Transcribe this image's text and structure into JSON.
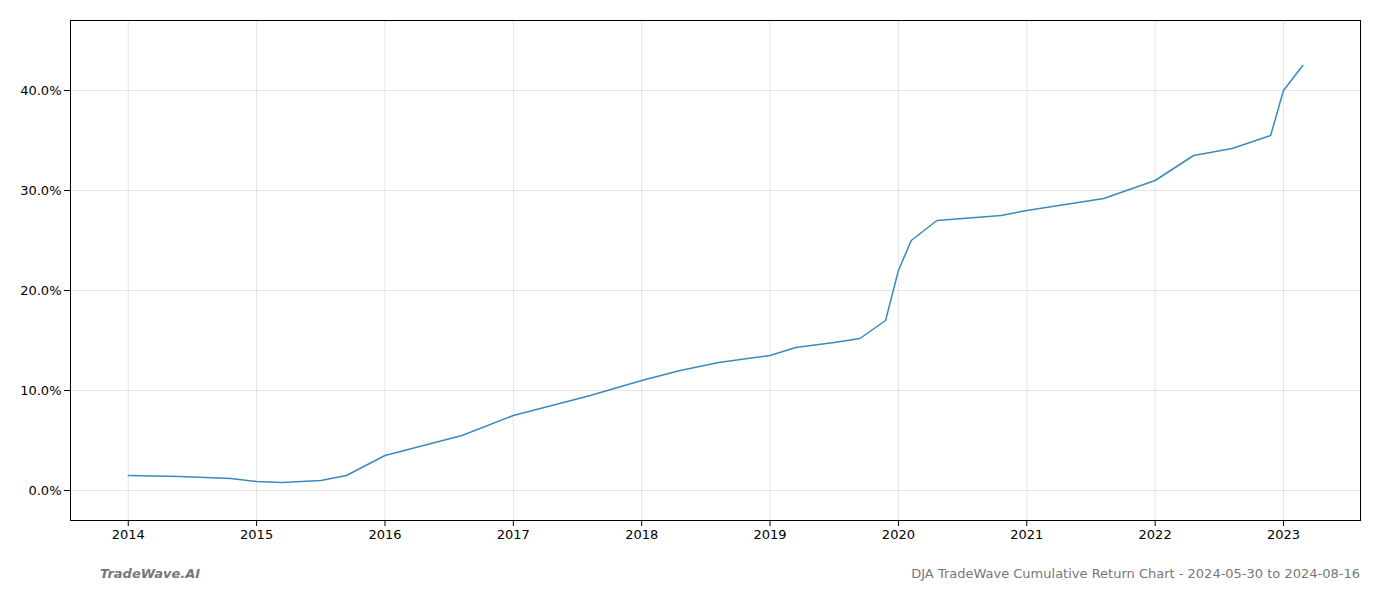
{
  "chart_data": {
    "type": "line",
    "annotations": [
      "TradeWave.AI",
      "DJA TradeWave Cumulative Return Chart - 2024-05-30 to 2024-08-16"
    ],
    "x": [
      2014.0,
      2014.4,
      2014.8,
      2015.0,
      2015.2,
      2015.5,
      2015.7,
      2016.0,
      2016.3,
      2016.6,
      2017.0,
      2017.3,
      2017.6,
      2018.0,
      2018.3,
      2018.6,
      2019.0,
      2019.2,
      2019.5,
      2019.7,
      2019.9,
      2020.0,
      2020.1,
      2020.3,
      2020.5,
      2020.8,
      2021.0,
      2021.3,
      2021.6,
      2022.0,
      2022.3,
      2022.6,
      2022.9,
      2023.0,
      2023.15
    ],
    "values": [
      1.5,
      1.4,
      1.2,
      0.9,
      0.8,
      1.0,
      1.5,
      3.5,
      4.5,
      5.5,
      7.5,
      8.5,
      9.5,
      11.0,
      12.0,
      12.8,
      13.5,
      14.3,
      14.8,
      15.2,
      17.0,
      22.0,
      25.0,
      27.0,
      27.2,
      27.5,
      28.0,
      28.6,
      29.2,
      31.0,
      33.5,
      34.2,
      35.5,
      40.0,
      42.5
    ],
    "color": "#3a8abf",
    "xlim": [
      2013.55,
      2023.6
    ],
    "xticks": [
      2014,
      2015,
      2016,
      2017,
      2018,
      2019,
      2020,
      2021,
      2022,
      2023
    ],
    "ylim": [
      -3,
      47
    ],
    "yticks": [
      {
        "value": 0,
        "label": "0.0%"
      },
      {
        "value": 10,
        "label": "10.0%"
      },
      {
        "value": 20,
        "label": "20.0%"
      },
      {
        "value": 30,
        "label": "30.0%"
      },
      {
        "value": 40,
        "label": "40.0%"
      }
    ],
    "grid": true
  }
}
